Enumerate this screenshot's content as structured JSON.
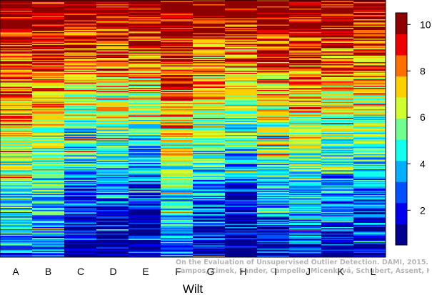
{
  "chart_data": {
    "type": "heatmap",
    "title": "",
    "xlabel": "Wilt",
    "ylabel": "",
    "columns": [
      "A",
      "B",
      "C",
      "D",
      "E",
      "F",
      "G",
      "H",
      "I",
      "J",
      "K",
      "L"
    ],
    "column_blue_fraction": [
      0.25,
      0.3,
      0.6,
      0.6,
      0.68,
      0.25,
      0.55,
      0.68,
      0.45,
      0.4,
      0.5,
      0.55
    ],
    "value_range": [
      0.5,
      10.5
    ],
    "colorbar": {
      "ticks": [
        2,
        4,
        6,
        8,
        10
      ],
      "colors": [
        "#00008F",
        "#0000EF",
        "#0050FF",
        "#00AFFF",
        "#10FFEF",
        "#70FF8F",
        "#CFFF30",
        "#FFD000",
        "#FF7000",
        "#EF0000",
        "#8F0000"
      ]
    },
    "grid": false,
    "legend_position": "right"
  },
  "watermark": {
    "line1": "On the Evaluation of Unsupervised Outlier Detection. DAMI, 2015.",
    "line2": "Campos, Zimek, Sander, Campello, Micenková, Schubert, Assent, Houle"
  }
}
